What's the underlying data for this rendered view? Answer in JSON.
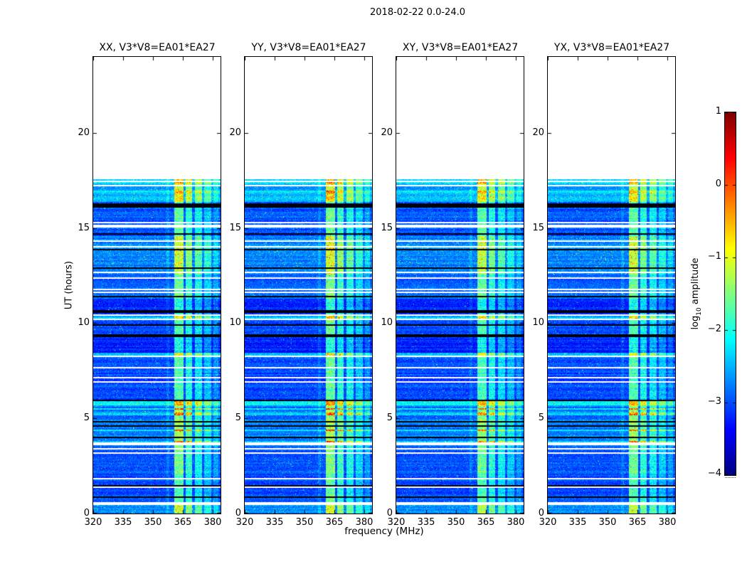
{
  "figure": {
    "suptitle": "2018-02-22 0.0-24.0",
    "xlabel": "frequency (MHz)",
    "ylabel": "UT (hours)"
  },
  "colorbar": {
    "label_pre": "log",
    "label_sub": "10",
    "label_post": " amplitude",
    "colormap": "jet",
    "tick_labels": [
      "1",
      "0",
      "−1",
      "−2",
      "−3",
      "−4"
    ],
    "tick_values": [
      1,
      0,
      -1,
      -2,
      -3,
      -4
    ],
    "vmin": -4,
    "vmax": 1
  },
  "chart_data": {
    "type": "heatmap",
    "title": "2018-02-22 0.0-24.0",
    "xlabel": "frequency (MHz)",
    "ylabel": "UT (hours)",
    "value_label": "log10 amplitude",
    "xlim": [
      320,
      384
    ],
    "ylim": [
      0,
      24
    ],
    "xticks": [
      320,
      335,
      350,
      365,
      380
    ],
    "xtick_labels": [
      "320",
      "335",
      "350",
      "365",
      "380"
    ],
    "yticks": [
      0,
      5,
      10,
      15,
      20
    ],
    "ytick_labels": [
      "0",
      "5",
      "10",
      "15",
      "20"
    ],
    "vmin": -4,
    "vmax": 1,
    "colormap": "jet",
    "data_time_range": [
      0,
      17.6
    ],
    "panels": [
      {
        "label": "XX, V3*V8=EA01*EA27",
        "seed": 11,
        "band_scale": 1.0
      },
      {
        "label": "YY, V3*V8=EA01*EA27",
        "seed": 22,
        "band_scale": 1.06
      },
      {
        "label": "XY, V3*V8=EA01*EA27",
        "seed": 33,
        "band_scale": 0.95
      },
      {
        "label": "YX, V3*V8=EA01*EA27",
        "seed": 44,
        "band_scale": 0.97
      }
    ],
    "rfi_bands_mhz": [
      [
        360.8,
        365.3,
        1.3
      ],
      [
        366.6,
        369.8,
        1.0
      ],
      [
        371.2,
        374.6,
        0.82
      ],
      [
        375.8,
        379.4,
        0.58
      ],
      [
        380.4,
        382.8,
        0.35
      ],
      [
        356.8,
        358.4,
        0.2
      ]
    ],
    "time_blocks": [
      {
        "t0": 16.35,
        "t1": 17.6,
        "level": -2.85,
        "spike": 0.02,
        "band_gain": 1.2
      },
      {
        "t0": 14.6,
        "t1": 16.35,
        "level": -3.25,
        "spike": 0.012,
        "band_gain": 1.0
      },
      {
        "t0": 12.55,
        "t1": 14.6,
        "level": -3.02,
        "spike": 0.03,
        "band_gain": 1.25
      },
      {
        "t0": 11.3,
        "t1": 12.55,
        "level": -3.22,
        "spike": 0.012,
        "band_gain": 1.0
      },
      {
        "t0": 10.72,
        "t1": 11.3,
        "level": -3.42,
        "spike": 0.01,
        "band_gain": 0.9
      },
      {
        "t0": 9.44,
        "t1": 10.72,
        "level": -3.32,
        "spike": 0.012,
        "band_gain": 1.0
      },
      {
        "t0": 8.47,
        "t1": 9.44,
        "level": -3.52,
        "spike": 0.008,
        "band_gain": 0.9
      },
      {
        "t0": 5.88,
        "t1": 8.47,
        "level": -3.3,
        "spike": 0.012,
        "band_gain": 1.0
      },
      {
        "t0": 5.66,
        "t1": 5.88,
        "level": -2.45,
        "spike": 0.02,
        "band_gain": 1.3
      },
      {
        "t0": 2.2,
        "t1": 3.76,
        "level": -3.18,
        "spike": 0.012,
        "band_gain": 1.1
      },
      {
        "t0": 0.63,
        "t1": 2.2,
        "level": -3.3,
        "spike": 0.01,
        "band_gain": 1.0
      },
      {
        "t0": 0.0,
        "t1": 0.63,
        "level": -2.9,
        "spike": 0.02,
        "band_gain": 1.2
      }
    ],
    "storm": {
      "t0": 3.76,
      "t1": 5.66,
      "p_black": 0.3,
      "p_bright": 0.3,
      "bright_level": -2.5,
      "normal_level": -3.05,
      "band_gain": 1.7
    },
    "stripes": [
      {
        "type": "white",
        "t0": 17.42,
        "t1": 17.48
      },
      {
        "type": "white",
        "t0": 17.31,
        "t1": 17.37
      },
      {
        "type": "white",
        "t0": 17.21,
        "t1": 17.27
      },
      {
        "type": "white",
        "t0": 16.65,
        "t1": 16.71
      },
      {
        "type": "white",
        "t0": 15.37,
        "t1": 15.43
      },
      {
        "type": "white",
        "t0": 15.26,
        "t1": 15.32
      },
      {
        "type": "white",
        "t0": 15.03,
        "t1": 15.2
      },
      {
        "type": "white",
        "t0": 14.26,
        "t1": 14.32
      },
      {
        "type": "white",
        "t0": 13.96,
        "t1": 14.02
      },
      {
        "type": "white",
        "t0": 12.65,
        "t1": 12.71
      },
      {
        "type": "white",
        "t0": 12.35,
        "t1": 12.41
      },
      {
        "type": "white",
        "t0": 11.76,
        "t1": 11.82
      },
      {
        "type": "white",
        "t0": 11.61,
        "t1": 11.67
      },
      {
        "type": "white",
        "t0": 10.37,
        "t1": 10.43
      },
      {
        "type": "white",
        "t0": 10.15,
        "t1": 10.21
      },
      {
        "type": "white",
        "t0": 8.24,
        "t1": 8.3
      },
      {
        "type": "white",
        "t0": 7.64,
        "t1": 7.7
      },
      {
        "type": "white",
        "t0": 7.11,
        "t1": 7.17
      },
      {
        "type": "white",
        "t0": 6.89,
        "t1": 6.95
      },
      {
        "type": "white",
        "t0": 3.56,
        "t1": 3.76
      },
      {
        "type": "white",
        "t0": 3.38,
        "t1": 3.44
      },
      {
        "type": "white",
        "t0": 3.15,
        "t1": 3.21
      },
      {
        "type": "white",
        "t0": 2.29,
        "t1": 2.35
      },
      {
        "type": "white",
        "t0": 1.79,
        "t1": 1.85
      },
      {
        "type": "white",
        "t0": 1.33,
        "t1": 1.39
      },
      {
        "type": "white",
        "t0": 0.44,
        "t1": 0.63
      },
      {
        "type": "black",
        "t0": 16.11,
        "t1": 16.33
      },
      {
        "type": "black",
        "t0": 14.69,
        "t1": 14.76
      },
      {
        "type": "black",
        "t0": 13.81,
        "t1": 13.88
      },
      {
        "type": "black",
        "t0": 12.89,
        "t1": 12.95
      },
      {
        "type": "black",
        "t0": 11.35,
        "t1": 11.41
      },
      {
        "type": "black",
        "t0": 10.55,
        "t1": 10.72
      },
      {
        "type": "black",
        "t0": 9.87,
        "t1": 9.93
      },
      {
        "type": "black",
        "t0": 9.28,
        "t1": 9.44
      },
      {
        "type": "black",
        "t0": 6.78,
        "t1": 6.84
      },
      {
        "type": "black",
        "t0": 6.33,
        "t1": 6.39
      },
      {
        "type": "black",
        "t0": 5.94,
        "t1": 5.99
      },
      {
        "type": "black",
        "t0": 1.45,
        "t1": 1.53
      },
      {
        "type": "black",
        "t0": 0.79,
        "t1": 0.9
      },
      {
        "type": "bright",
        "t0": 17.48,
        "t1": 17.6,
        "level": -2.55,
        "band_gain": 1.4
      },
      {
        "type": "bright",
        "t0": 17.37,
        "t1": 17.42,
        "level": -2.6,
        "band_gain": 1.4
      },
      {
        "type": "bright",
        "t0": 16.84,
        "t1": 16.96,
        "level": -2.6,
        "band_gain": 1.4
      },
      {
        "type": "bright",
        "t0": 16.55,
        "t1": 16.65,
        "level": -2.7,
        "band_gain": 1.3
      },
      {
        "type": "bright",
        "t0": 10.21,
        "t1": 10.37,
        "level": -2.7,
        "band_gain": 1.3
      },
      {
        "type": "bright",
        "t0": 8.3,
        "t1": 8.47,
        "level": -2.8,
        "band_gain": 1.2
      }
    ]
  }
}
